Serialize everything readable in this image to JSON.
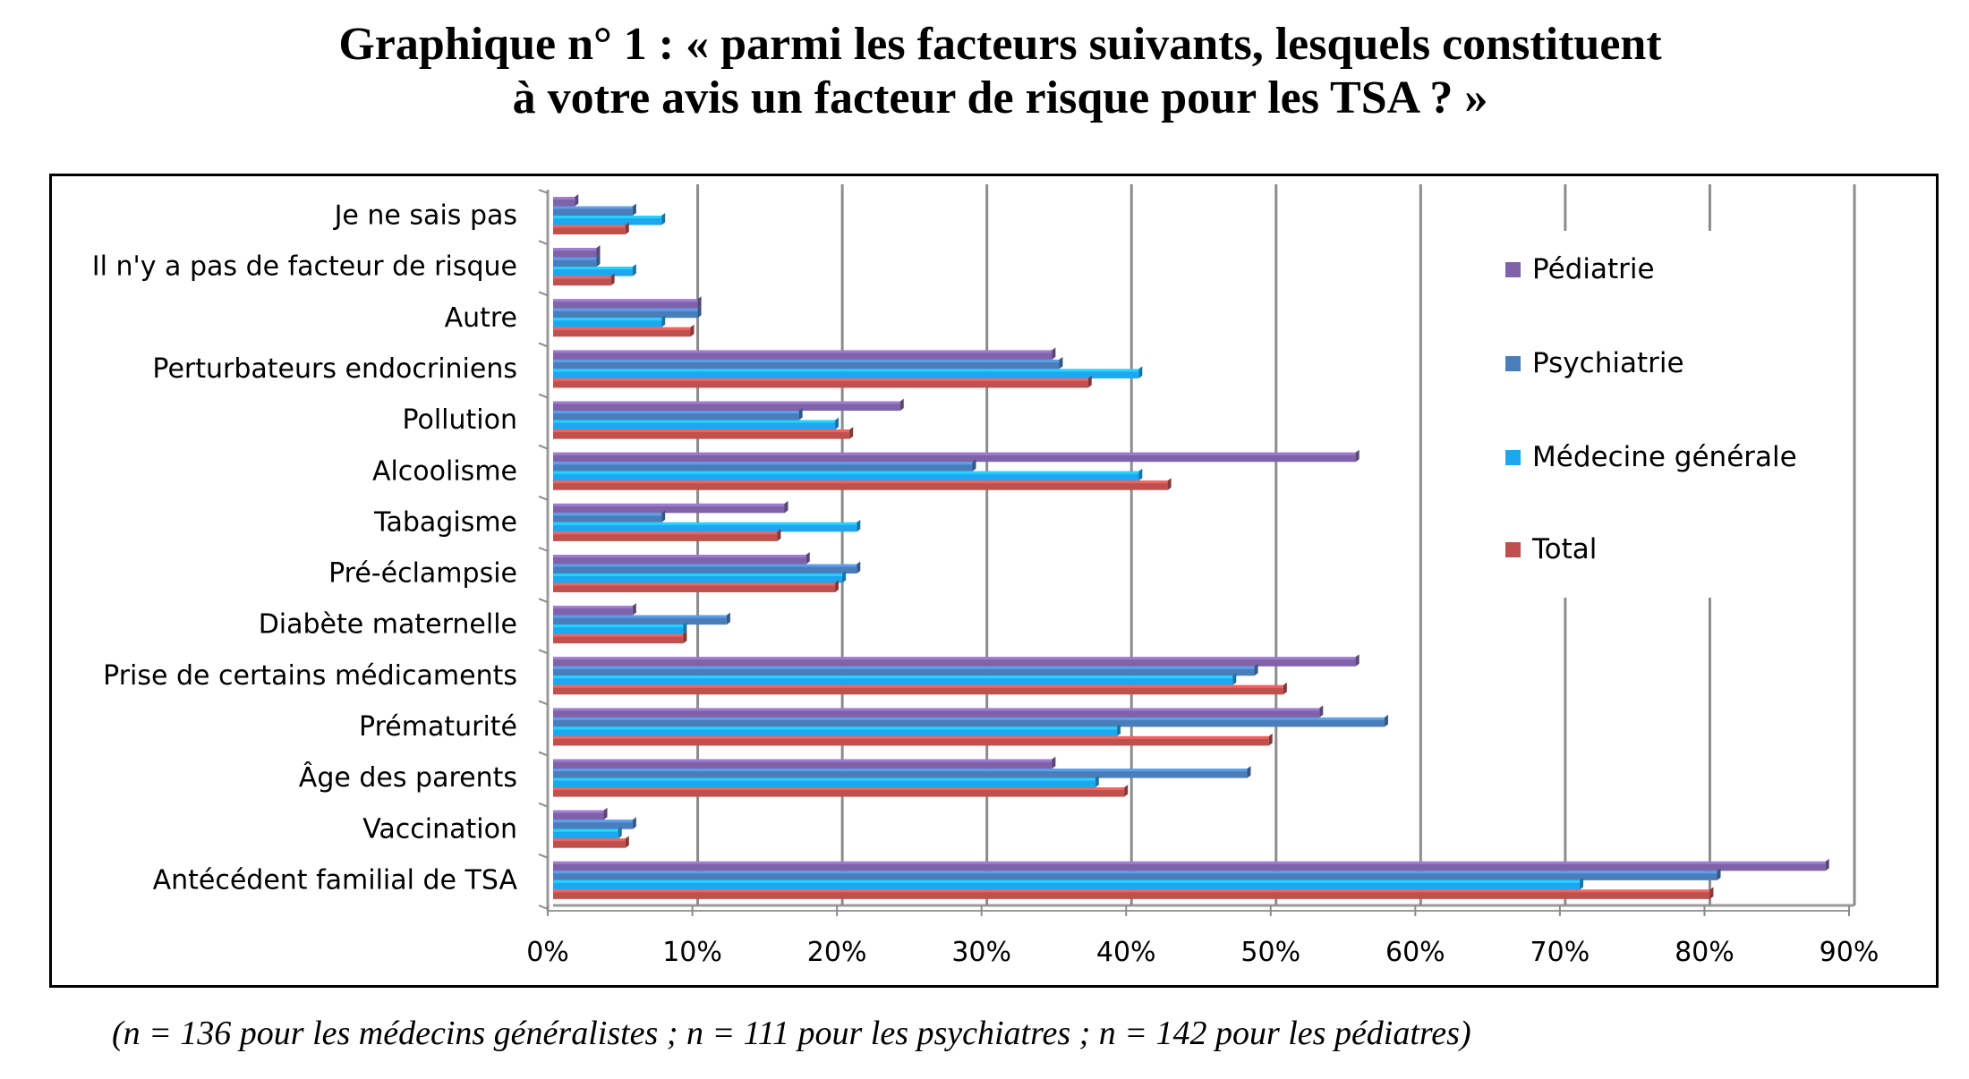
{
  "title": {
    "line1": "Graphique n° 1 : « parmi les facteurs suivants, lesquels constituent",
    "line2": "à votre avis un facteur de risque pour les TSA ? »"
  },
  "note": "(n = 136 pour les médecins généralistes ; n = 111 pour les psychiatres ; n = 142 pour les pédiatres)",
  "chart_data": {
    "type": "bar",
    "orientation": "horizontal",
    "title": "Graphique n° 1 : « parmi les facteurs suivants, lesquels constituent à votre avis un facteur de risque pour les TSA ? »",
    "categories": [
      "Je ne sais pas",
      "Il n'y a pas de facteur de risque",
      "Autre",
      "Perturbateurs endocriniens",
      "Pollution",
      "Alcoolisme",
      "Tabagisme",
      "Pré-éclampsie",
      "Diabète maternelle",
      "Prise de certains médicaments",
      "Prématurité",
      "Âge des parents",
      "Vaccination",
      "Antécédent familial de TSA"
    ],
    "series": [
      {
        "name": "Pédiatrie",
        "color": "#7f62a8",
        "values": [
          1.5,
          3,
          10,
          34.5,
          24,
          55.5,
          16,
          17.5,
          5.5,
          55.5,
          53,
          34.5,
          3.5,
          88
        ]
      },
      {
        "name": "Psychiatrie",
        "color": "#4a7ebb",
        "values": [
          5.5,
          3,
          10,
          35,
          17,
          29,
          7.5,
          21,
          12,
          48.5,
          57.5,
          48,
          5.5,
          80.5
        ]
      },
      {
        "name": "Médecine générale",
        "color": "#1ea7f0",
        "values": [
          7.5,
          5.5,
          7.5,
          40.5,
          19.5,
          40.5,
          21,
          20,
          9,
          47,
          39,
          37.5,
          4.5,
          71
        ]
      },
      {
        "name": "Total",
        "color": "#c0504d",
        "values": [
          5,
          4,
          9.5,
          37,
          20.5,
          42.5,
          15.5,
          19.5,
          9,
          50.5,
          49.5,
          39.5,
          5,
          80
        ]
      }
    ],
    "xlim": [
      0,
      90
    ],
    "xticks": [
      "0%",
      "10%",
      "20%",
      "30%",
      "40%",
      "50%",
      "60%",
      "70%",
      "80%",
      "90%"
    ],
    "grid": true,
    "legend_position": "right"
  }
}
